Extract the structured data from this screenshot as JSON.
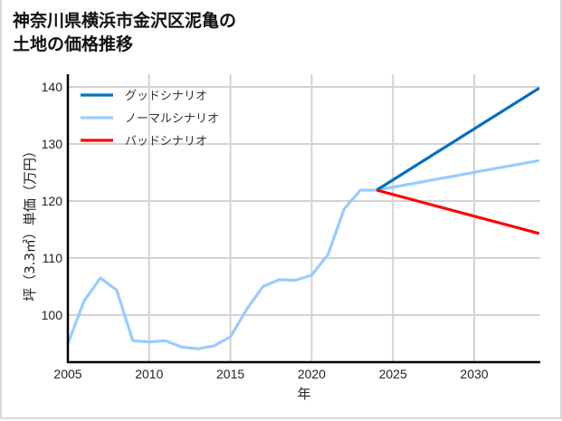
{
  "chart_data": {
    "type": "line",
    "title": "神奈川県横浜市金沢区泥亀の土地の価格推移",
    "title_lines": [
      "神奈川県横浜市金沢区泥亀の",
      "土地の価格推移"
    ],
    "xlabel": "年",
    "ylabel": "坪（3.3㎡）単価（万円）",
    "xlim": [
      2005,
      2034
    ],
    "ylim": [
      92,
      141
    ],
    "x_ticks": [
      2005,
      2010,
      2015,
      2020,
      2025,
      2030
    ],
    "y_ticks": [
      100,
      110,
      120,
      130,
      140
    ],
    "grid": true,
    "legend_position": "upper left",
    "series": [
      {
        "name": "グッドシナリオ",
        "color": "#0070c0",
        "x": [
          2024,
          2034
        ],
        "values": [
          121.9,
          139.8
        ]
      },
      {
        "name": "ノーマルシナリオ",
        "color": "#99ccff",
        "x": [
          2005,
          2006,
          2007,
          2008,
          2009,
          2010,
          2011,
          2012,
          2013,
          2014,
          2015,
          2016,
          2017,
          2018,
          2019,
          2020,
          2021,
          2022,
          2023,
          2024,
          2034
        ],
        "values": [
          95.0,
          102.5,
          106.5,
          104.4,
          95.5,
          95.3,
          95.5,
          94.4,
          94.1,
          94.6,
          96.2,
          101.0,
          105.0,
          106.2,
          106.1,
          107.0,
          110.6,
          118.6,
          121.9,
          121.9,
          127.1
        ]
      },
      {
        "name": "バッドシナリオ",
        "color": "#ff0000",
        "x": [
          2024,
          2034
        ],
        "values": [
          121.9,
          114.3
        ]
      }
    ]
  }
}
